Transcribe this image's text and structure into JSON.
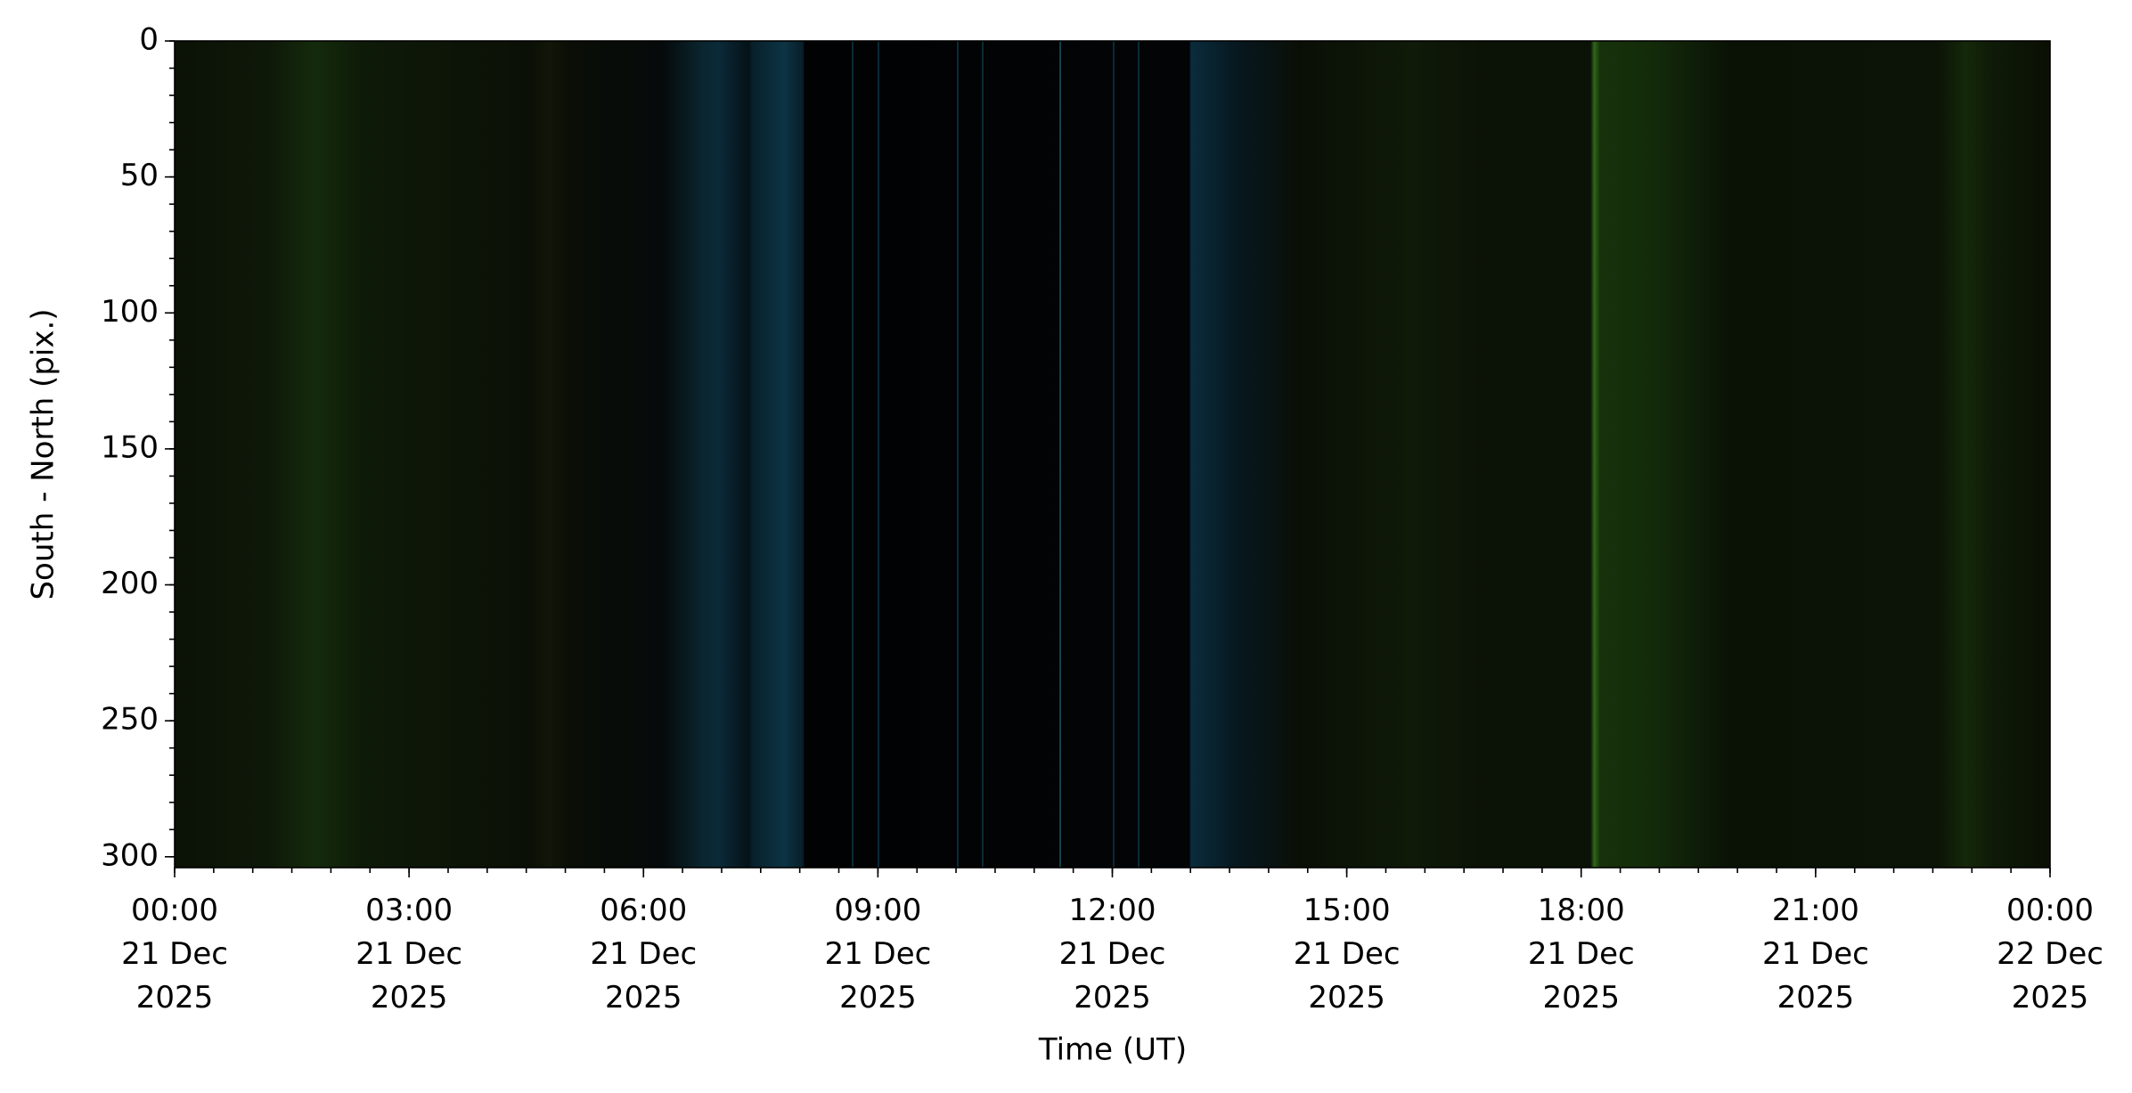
{
  "chart_data": {
    "type": "image",
    "xlabel": "Time (UT)",
    "ylabel": "South - North (pix.)",
    "xlim": [
      "2025-12-21T00:00Z",
      "2025-12-22T00:00Z"
    ],
    "xticks": [
      {
        "value": "2025-12-21T00:00Z",
        "label": [
          "00:00",
          "21 Dec",
          "2025"
        ]
      },
      {
        "value": "2025-12-21T03:00Z",
        "label": [
          "03:00",
          "21 Dec",
          "2025"
        ]
      },
      {
        "value": "2025-12-21T06:00Z",
        "label": [
          "06:00",
          "21 Dec",
          "2025"
        ]
      },
      {
        "value": "2025-12-21T09:00Z",
        "label": [
          "09:00",
          "21 Dec",
          "2025"
        ]
      },
      {
        "value": "2025-12-21T12:00Z",
        "label": [
          "12:00",
          "21 Dec",
          "2025"
        ]
      },
      {
        "value": "2025-12-21T15:00Z",
        "label": [
          "15:00",
          "21 Dec",
          "2025"
        ]
      },
      {
        "value": "2025-12-21T18:00Z",
        "label": [
          "18:00",
          "21 Dec",
          "2025"
        ]
      },
      {
        "value": "2025-12-21T21:00Z",
        "label": [
          "21:00",
          "21 Dec",
          "2025"
        ]
      },
      {
        "value": "2025-12-22T00:00Z",
        "label": [
          "00:00",
          "22 Dec",
          "2025"
        ]
      }
    ],
    "x_minor_interval_minutes": 30,
    "ylim": [
      0,
      304
    ],
    "y_inverted": true,
    "yticks": [
      0,
      50,
      100,
      150,
      200,
      250,
      300
    ],
    "y_minor_interval": 10
  }
}
